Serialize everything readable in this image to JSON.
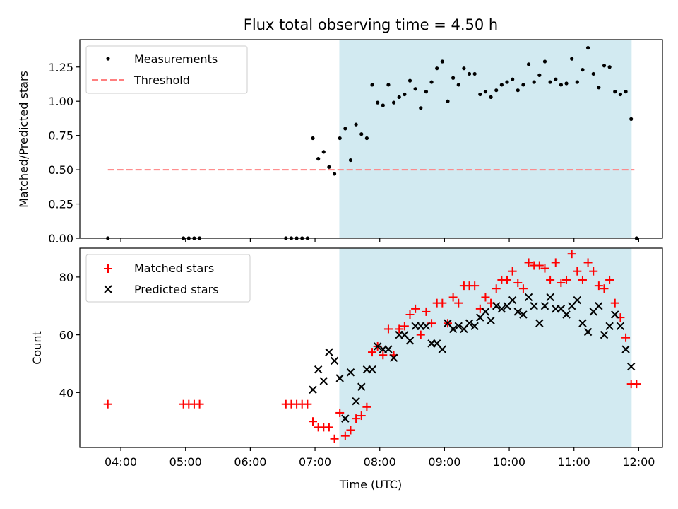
{
  "title": "Flux total observing time = 4.50 h",
  "chart_data": [
    {
      "type": "scatter",
      "ylabel": "Matched/Predicted stars",
      "ylim": [
        0,
        1.45
      ],
      "yticks": [
        0.0,
        0.25,
        0.5,
        0.75,
        1.0,
        1.25
      ],
      "ytick_labels": [
        "0.00",
        "0.25",
        "0.50",
        "0.75",
        "1.00",
        "1.25"
      ],
      "legend": {
        "placement": "top-left",
        "entries": [
          "Measurements",
          "Threshold"
        ]
      },
      "threshold": {
        "name": "Threshold",
        "value": 0.5,
        "x_range": [
          "03:48",
          "11:56"
        ],
        "color": "#ff7f7f"
      },
      "shaded_span": [
        "07:23",
        "11:53"
      ],
      "series": [
        {
          "name": "Measurements",
          "color": "#000000",
          "x": [
            "03:48",
            "04:58",
            "05:03",
            "05:08",
            "05:13",
            "06:33",
            "06:38",
            "06:43",
            "06:48",
            "06:53",
            "06:58",
            "07:03",
            "07:08",
            "07:13",
            "07:18",
            "07:23",
            "07:28",
            "07:33",
            "07:38",
            "07:43",
            "07:48",
            "07:53",
            "07:58",
            "08:03",
            "08:08",
            "08:13",
            "08:18",
            "08:23",
            "08:28",
            "08:33",
            "08:38",
            "08:43",
            "08:48",
            "08:53",
            "08:58",
            "09:03",
            "09:08",
            "09:13",
            "09:18",
            "09:23",
            "09:28",
            "09:33",
            "09:38",
            "09:43",
            "09:48",
            "09:53",
            "09:58",
            "10:03",
            "10:08",
            "10:13",
            "10:18",
            "10:23",
            "10:28",
            "10:33",
            "10:38",
            "10:43",
            "10:48",
            "10:53",
            "10:58",
            "11:03",
            "11:08",
            "11:13",
            "11:18",
            "11:23",
            "11:28",
            "11:33",
            "11:38",
            "11:43",
            "11:48",
            "11:53",
            "11:58"
          ],
          "y": [
            0,
            0,
            0,
            0,
            0,
            0,
            0,
            0,
            0,
            0,
            0.73,
            0.58,
            0.63,
            0.52,
            0.47,
            0.73,
            0.8,
            0.57,
            0.83,
            0.76,
            0.73,
            1.12,
            0.99,
            0.97,
            1.12,
            0.99,
            1.03,
            1.05,
            1.15,
            1.09,
            0.95,
            1.07,
            1.14,
            1.24,
            1.29,
            1.0,
            1.17,
            1.12,
            1.24,
            1.2,
            1.2,
            1.05,
            1.07,
            1.03,
            1.08,
            1.12,
            1.14,
            1.16,
            1.08,
            1.12,
            1.27,
            1.14,
            1.19,
            1.29,
            1.14,
            1.16,
            1.12,
            1.13,
            1.31,
            1.14,
            1.23,
            1.39,
            1.2,
            1.1,
            1.26,
            1.25,
            1.07,
            1.05,
            1.07,
            0.87,
            0.0
          ]
        }
      ]
    },
    {
      "type": "scatter",
      "xlabel": "Time (UTC)",
      "ylabel": "Count",
      "ylim": [
        21,
        90
      ],
      "yticks": [
        40,
        60,
        80
      ],
      "ytick_labels": [
        "40",
        "60",
        "80"
      ],
      "xticks": [
        "04:00",
        "05:00",
        "06:00",
        "07:00",
        "08:00",
        "09:00",
        "10:00",
        "11:00",
        "12:00"
      ],
      "xlim": [
        "03:22",
        "12:22"
      ],
      "legend": {
        "placement": "top-left",
        "entries": [
          "Matched stars",
          "Predicted stars"
        ]
      },
      "shaded_span": [
        "07:23",
        "11:53"
      ],
      "series": [
        {
          "name": "Matched stars",
          "marker": "+",
          "color": "#ff0000",
          "x": [
            "03:48",
            "04:58",
            "05:03",
            "05:08",
            "05:13",
            "06:33",
            "06:38",
            "06:43",
            "06:48",
            "06:53",
            "06:58",
            "07:03",
            "07:08",
            "07:13",
            "07:18",
            "07:23",
            "07:28",
            "07:33",
            "07:38",
            "07:43",
            "07:48",
            "07:53",
            "07:58",
            "08:03",
            "08:08",
            "08:13",
            "08:18",
            "08:23",
            "08:28",
            "08:33",
            "08:38",
            "08:43",
            "08:48",
            "08:53",
            "08:58",
            "09:03",
            "09:08",
            "09:13",
            "09:18",
            "09:23",
            "09:28",
            "09:33",
            "09:38",
            "09:43",
            "09:48",
            "09:53",
            "09:58",
            "10:03",
            "10:08",
            "10:13",
            "10:18",
            "10:23",
            "10:28",
            "10:33",
            "10:38",
            "10:43",
            "10:48",
            "10:53",
            "10:58",
            "11:03",
            "11:08",
            "11:13",
            "11:18",
            "11:23",
            "11:28",
            "11:33",
            "11:38",
            "11:43",
            "11:48",
            "11:53",
            "11:58"
          ],
          "y": [
            36,
            36,
            36,
            36,
            36,
            36,
            36,
            36,
            36,
            36,
            30,
            28,
            28,
            28,
            24,
            33,
            25,
            27,
            31,
            32,
            35,
            54,
            56,
            53,
            62,
            53,
            62,
            63,
            67,
            69,
            60,
            68,
            64,
            71,
            71,
            64,
            73,
            71,
            77,
            77,
            77,
            69,
            73,
            71,
            76,
            79,
            79,
            82,
            78,
            76,
            85,
            84,
            84,
            83,
            79,
            85,
            78,
            79,
            88,
            82,
            79,
            85,
            82,
            77,
            76,
            79,
            71,
            66,
            59,
            43,
            43
          ]
        },
        {
          "name": "Predicted stars",
          "marker": "x",
          "color": "#000000",
          "x": [
            "06:58",
            "07:03",
            "07:08",
            "07:13",
            "07:18",
            "07:23",
            "07:28",
            "07:33",
            "07:38",
            "07:43",
            "07:48",
            "07:53",
            "07:58",
            "08:03",
            "08:08",
            "08:13",
            "08:18",
            "08:23",
            "08:28",
            "08:33",
            "08:38",
            "08:43",
            "08:48",
            "08:53",
            "08:58",
            "09:03",
            "09:08",
            "09:13",
            "09:18",
            "09:23",
            "09:28",
            "09:33",
            "09:38",
            "09:43",
            "09:48",
            "09:53",
            "09:58",
            "10:03",
            "10:08",
            "10:13",
            "10:18",
            "10:23",
            "10:28",
            "10:33",
            "10:38",
            "10:43",
            "10:48",
            "10:53",
            "10:58",
            "11:03",
            "11:08",
            "11:13",
            "11:18",
            "11:23",
            "11:28",
            "11:33",
            "11:38",
            "11:43",
            "11:48",
            "11:53"
          ],
          "y": [
            41,
            48,
            44,
            54,
            51,
            45,
            31,
            47,
            37,
            42,
            48,
            48,
            56,
            55,
            55,
            52,
            60,
            60,
            58,
            63,
            63,
            63,
            57,
            57,
            55,
            64,
            62,
            63,
            62,
            64,
            63,
            66,
            68,
            65,
            70,
            69,
            70,
            72,
            68,
            67,
            73,
            70,
            64,
            70,
            73,
            69,
            69,
            67,
            70,
            72,
            64,
            61,
            68,
            70,
            60,
            63,
            67,
            63,
            55,
            49
          ]
        }
      ]
    }
  ]
}
